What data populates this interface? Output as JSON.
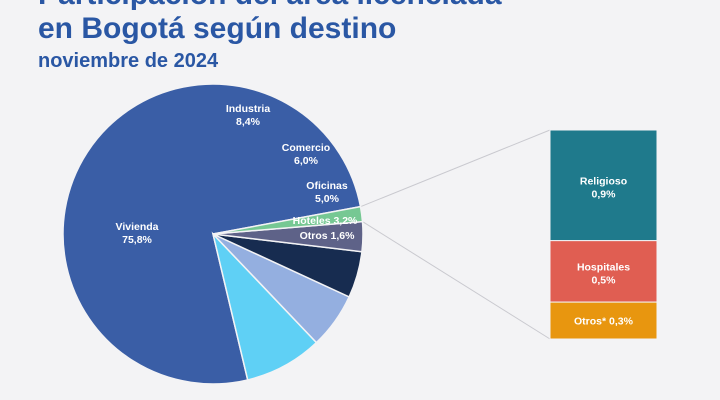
{
  "header": {
    "title_line1": "Participación del área licenciada",
    "title_line2": "en Bogotá según destino",
    "subtitle": "noviembre de 2024"
  },
  "chart_data": {
    "type": "pie",
    "title": "Participación del área licenciada en Bogotá según destino",
    "subtitle": "noviembre de 2024",
    "slices": [
      {
        "name": "Vivienda",
        "value": 75.8,
        "label": "75,8%",
        "color": "#3a5ea6"
      },
      {
        "name": "Industria",
        "value": 8.4,
        "label": "8,4%",
        "color": "#5fd0f5"
      },
      {
        "name": "Comercio",
        "value": 6.0,
        "label": "6,0%",
        "color": "#94afe0"
      },
      {
        "name": "Oficinas",
        "value": 5.0,
        "label": "5,0%",
        "color": "#172c50"
      },
      {
        "name": "Hoteles",
        "value": 3.2,
        "label": "3,2%",
        "color": "#5e6288"
      },
      {
        "name": "Otros",
        "value": 1.6,
        "label": "1,6%",
        "color": "#76c893"
      }
    ],
    "breakdown_of": "Otros",
    "breakdown": [
      {
        "name": "Religioso",
        "value": 0.9,
        "label": "0,9%",
        "color": "#1f7a8c"
      },
      {
        "name": "Hospitales",
        "value": 0.5,
        "label": "0,5%",
        "color": "#e05e52"
      },
      {
        "name": "Otros*",
        "value": 0.3,
        "label": "0,3%",
        "color": "#e8960f"
      }
    ]
  }
}
